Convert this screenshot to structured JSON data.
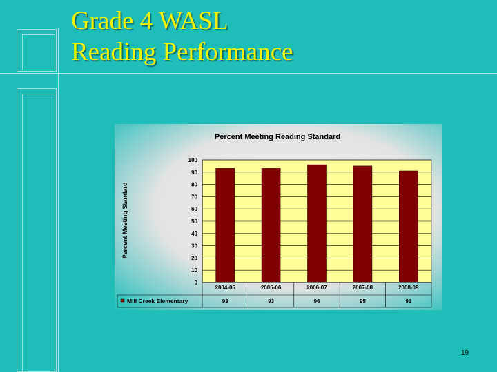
{
  "slide": {
    "title_line1": "Grade 4 WASL",
    "title_line2": "Reading Performance",
    "page_number": "19"
  },
  "colors": {
    "background": "#1EBDB8",
    "title": "#F2F200",
    "plot_area": "#FFFF99",
    "bar": "#800000"
  },
  "chart_data": {
    "type": "bar",
    "title": "Percent Meeting Reading Standard",
    "xlabel": "",
    "ylabel": "Percent Meeting Standard",
    "categories": [
      "2004-05",
      "2005-06",
      "2006-07",
      "2007-08",
      "2008-09"
    ],
    "series": [
      {
        "name": "Mill Creek Elementary",
        "values": [
          93,
          93,
          96,
          95,
          91
        ]
      }
    ],
    "ylim": [
      0,
      100
    ],
    "yticks": [
      0,
      10,
      20,
      30,
      40,
      50,
      60,
      70,
      80,
      90,
      100
    ],
    "grid": true,
    "legend": "data table below chart",
    "data_table": true
  }
}
